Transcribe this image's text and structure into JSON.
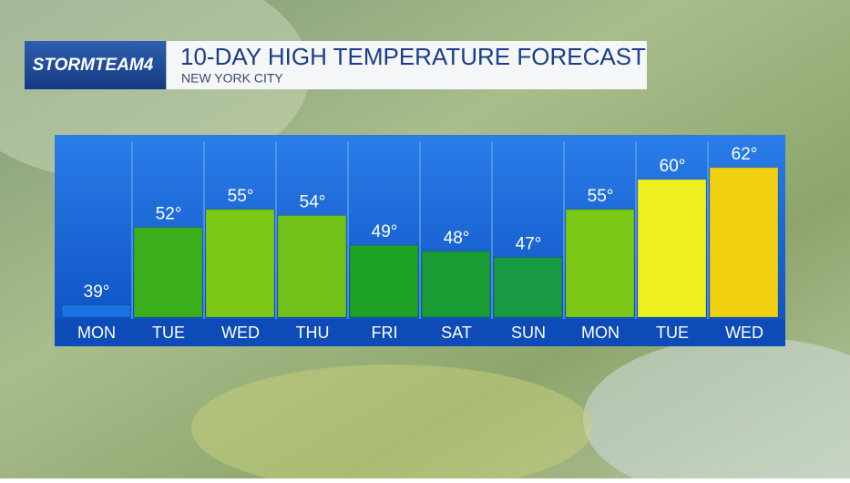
{
  "brand": "STORMTEAM4",
  "chart_data": {
    "type": "bar",
    "title": "10-DAY HIGH TEMPERATURE FORECAST",
    "subtitle": "NEW YORK CITY",
    "categories": [
      "MON",
      "TUE",
      "WED",
      "THU",
      "FRI",
      "SAT",
      "SUN",
      "MON",
      "TUE",
      "WED"
    ],
    "values": [
      39,
      52,
      55,
      54,
      49,
      48,
      47,
      55,
      60,
      62
    ],
    "value_labels": [
      "39°",
      "52°",
      "55°",
      "54°",
      "49°",
      "48°",
      "47°",
      "55°",
      "60°",
      "62°"
    ],
    "colors": [
      "#1c74e4",
      "#3cb01c",
      "#7cc816",
      "#70c218",
      "#1ea226",
      "#1a9c34",
      "#189a42",
      "#7cc816",
      "#eef020",
      "#f0d010"
    ],
    "ylim": [
      37,
      67
    ]
  }
}
